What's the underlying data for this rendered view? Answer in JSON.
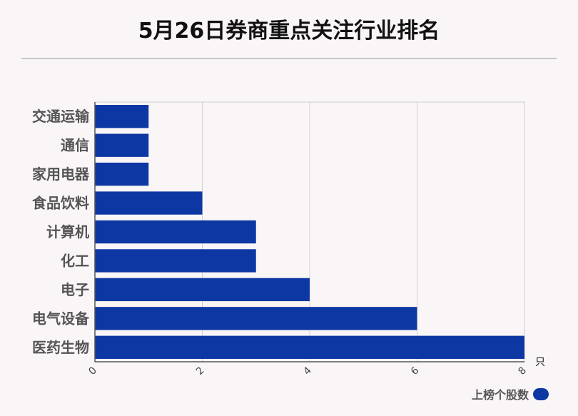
{
  "title": "5月26日券商重点关注行业排名",
  "chart_data": {
    "type": "bar",
    "orientation": "horizontal",
    "categories": [
      "交通运输",
      "通信",
      "家用电器",
      "食品饮料",
      "计算机",
      "化工",
      "电子",
      "电气设备",
      "医药生物"
    ],
    "series": [
      {
        "name": "上榜个股数",
        "values": [
          1,
          1,
          1,
          2,
          3,
          3,
          4,
          6,
          8
        ]
      }
    ],
    "xlim": [
      0,
      8
    ],
    "xticks": [
      0,
      2,
      4,
      6,
      8
    ],
    "xunit": "只",
    "grid": true,
    "legend_position": "bottom-right",
    "bar_color": "#0d37a3"
  }
}
